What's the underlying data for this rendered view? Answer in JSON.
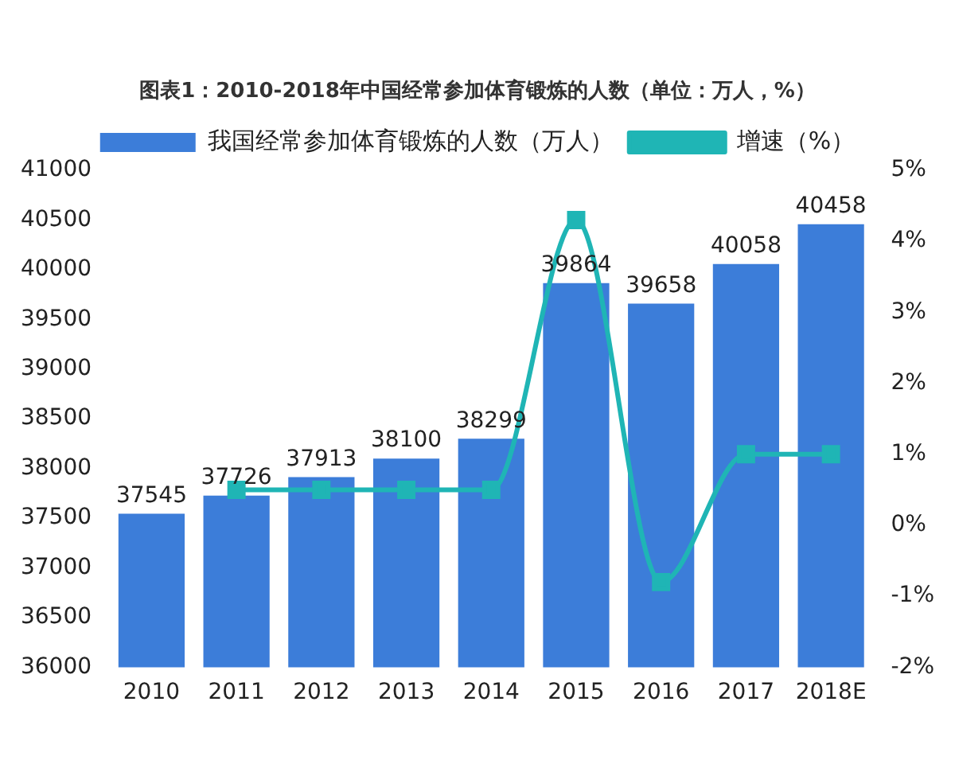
{
  "chart_data": {
    "type": "bar",
    "title": "图表1：2010-2018年中国经常参加体育锻炼的人数（单位：万人，%）",
    "categories": [
      "2010",
      "2011",
      "2012",
      "2013",
      "2014",
      "2015",
      "2016",
      "2017",
      "2018E"
    ],
    "series": [
      {
        "name": "我国经常参加体育锻炼的人数（万人）",
        "color": "#3c7dd9",
        "values": [
          37545,
          37726,
          37913,
          38100,
          38299,
          39864,
          39658,
          40058,
          40458
        ],
        "value_labels": [
          "37545",
          "37726",
          "37913",
          "38100",
          "38299",
          "39864",
          "39658",
          "40058",
          "40458"
        ]
      },
      {
        "name": "增速（%）",
        "type": "line",
        "axis": "y2",
        "color": "#1fb5b5",
        "marker": "square",
        "values": [
          null,
          0.5,
          0.5,
          0.5,
          0.5,
          4.3,
          -0.8,
          1.0,
          1.0
        ]
      }
    ],
    "ylim": [
      36000,
      41000
    ],
    "yticks": [
      36000,
      36500,
      37000,
      37500,
      38000,
      38500,
      39000,
      39500,
      40000,
      40500,
      41000
    ],
    "y2lim": [
      -2,
      5
    ],
    "y2ticks": [
      {
        "value": -2,
        "label": "-2%"
      },
      {
        "value": -1,
        "label": "-1%"
      },
      {
        "value": 0,
        "label": "0%"
      },
      {
        "value": 1,
        "label": "1%"
      },
      {
        "value": 2,
        "label": "2%"
      },
      {
        "value": 3,
        "label": "3%"
      },
      {
        "value": 4,
        "label": "4%"
      },
      {
        "value": 5,
        "label": "5%"
      }
    ],
    "grid": false,
    "legend": "top"
  }
}
